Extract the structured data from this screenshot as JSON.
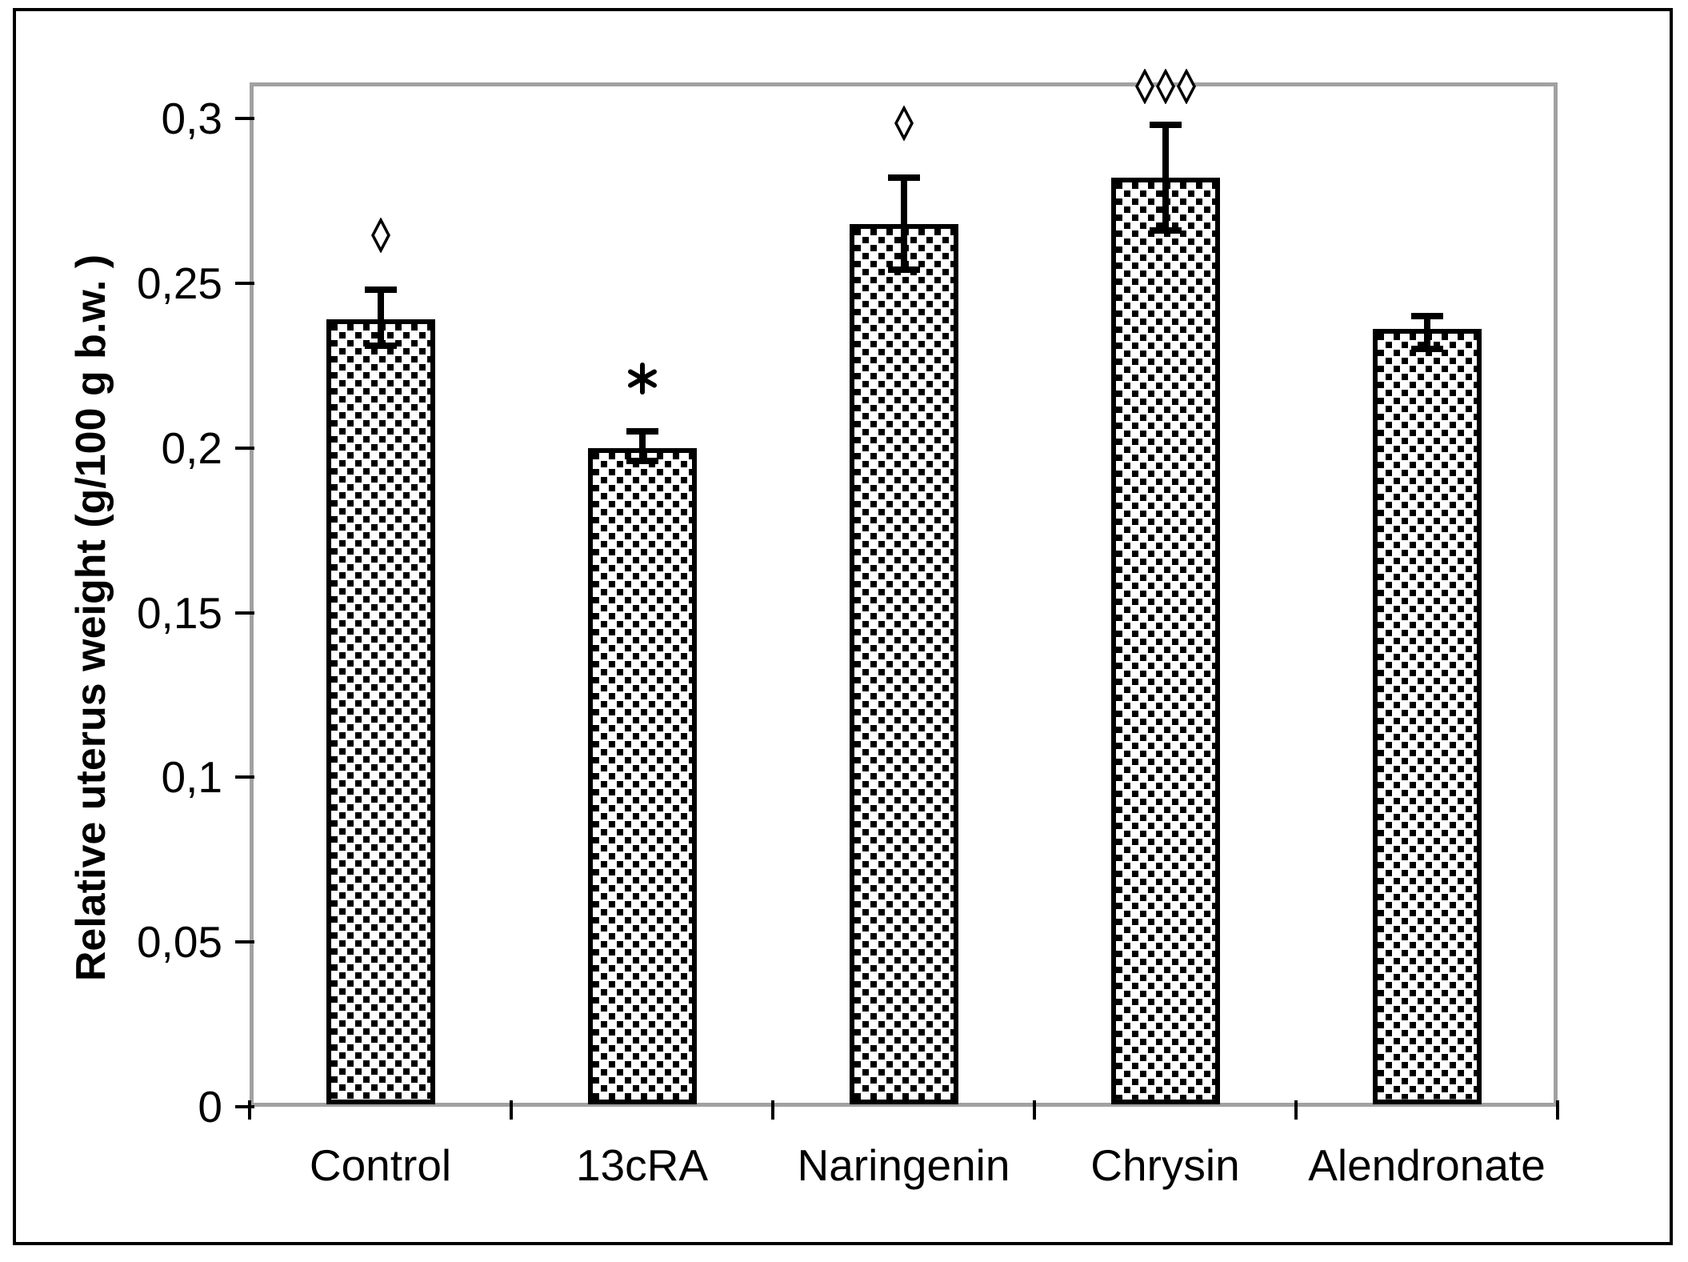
{
  "figure": {
    "background": "#ffffff",
    "border_color": "#000000",
    "plot_border_color": "#a1a1a1"
  },
  "chart_data": {
    "type": "bar",
    "title": "",
    "xlabel": "",
    "ylabel": "Relative uterus weight (g/100 g b.w. )",
    "categories": [
      "Control",
      "13cRA",
      "Naringenin",
      "Chrysin",
      "Alendronate"
    ],
    "values": [
      0.239,
      0.2,
      0.268,
      0.282,
      0.236
    ],
    "error_upper": [
      0.248,
      0.205,
      0.282,
      0.298,
      0.24
    ],
    "error_lower": [
      0.231,
      0.196,
      0.254,
      0.266,
      0.23
    ],
    "annotations": [
      "◊",
      "*",
      "◊",
      "◊◊◊",
      ""
    ],
    "y_ticks": [
      "0",
      "0,05",
      "0,1",
      "0,15",
      "0,2",
      "0,25",
      "0,3"
    ],
    "y_tick_values": [
      0,
      0.05,
      0.1,
      0.15,
      0.2,
      0.25,
      0.3
    ],
    "ylim": [
      0,
      0.311
    ],
    "decimal_separator": ",",
    "grid": "off",
    "legend": "none",
    "bar_fill": "black-white-checkerboard-pattern",
    "bar_border_color": "#000000",
    "error_bar_color": "#000000"
  }
}
